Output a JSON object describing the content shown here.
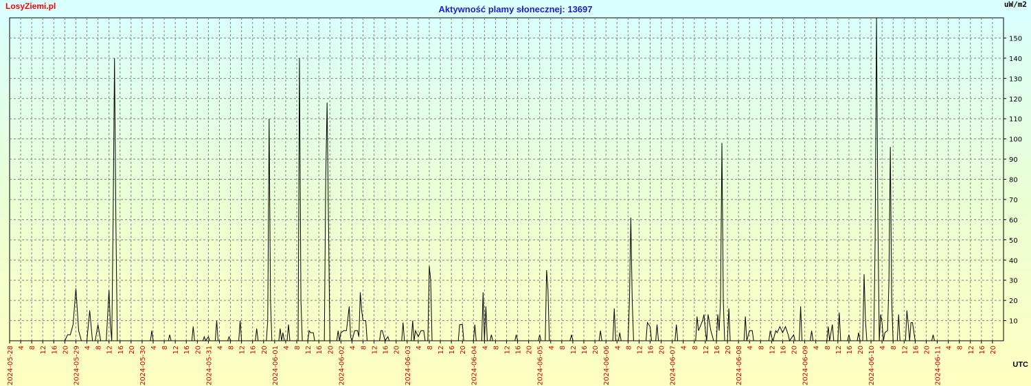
{
  "brand": "LosyZiemi.pl",
  "chart_data": {
    "type": "line",
    "title": "Aktywność plamy słonecznej: 13697",
    "ylabel": "uW/m2",
    "xlabel": "UTC",
    "ylim": [
      0,
      160
    ],
    "xlim_hours": [
      0,
      360
    ],
    "grid": true,
    "yticks": [
      10,
      20,
      30,
      40,
      50,
      60,
      70,
      80,
      90,
      100,
      110,
      120,
      130,
      140,
      150
    ],
    "xtick_labels": [
      "2024-05-28",
      "4",
      "8",
      "12",
      "16",
      "20",
      "2024-05-29",
      "4",
      "8",
      "12",
      "16",
      "20",
      "2024-05-30",
      "4",
      "8",
      "12",
      "16",
      "20",
      "2024-05-31",
      "4",
      "8",
      "12",
      "16",
      "20",
      "2024-06-01",
      "4",
      "8",
      "12",
      "16",
      "20",
      "2024-06-02",
      "4",
      "8",
      "12",
      "16",
      "20",
      "2024-06-03",
      "4",
      "8",
      "12",
      "16",
      "20",
      "2024-06-04",
      "4",
      "8",
      "12",
      "16",
      "20",
      "2024-06-05",
      "4",
      "8",
      "12",
      "16",
      "20",
      "2024-06-06",
      "4",
      "8",
      "12",
      "16",
      "20",
      "2024-06-07",
      "4",
      "8",
      "12",
      "16",
      "20",
      "2024-06-08",
      "4",
      "8",
      "12",
      "16",
      "20",
      "2024-06-09",
      "4",
      "8",
      "12",
      "16",
      "20",
      "2024-06-10",
      "4",
      "8",
      "12",
      "16",
      "20",
      "2024-06-11",
      "4",
      "8",
      "12",
      "16",
      "20"
    ],
    "series": [
      {
        "color": "#000000",
        "points": [
          [
            0,
            0
          ],
          [
            20,
            0
          ],
          [
            21,
            3
          ],
          [
            22,
            3
          ],
          [
            23,
            8
          ],
          [
            24,
            26
          ],
          [
            25,
            5
          ],
          [
            26,
            0
          ],
          [
            28,
            0
          ],
          [
            29,
            15
          ],
          [
            30,
            0
          ],
          [
            31,
            0
          ],
          [
            32,
            8
          ],
          [
            33,
            0
          ],
          [
            35,
            0
          ],
          [
            36,
            25
          ],
          [
            36.5,
            8
          ],
          [
            37,
            0
          ],
          [
            37.5,
            60
          ],
          [
            38,
            140
          ],
          [
            38.5,
            60
          ],
          [
            39,
            0
          ],
          [
            51,
            0
          ],
          [
            51.5,
            5
          ],
          [
            52,
            0
          ],
          [
            57.5,
            0
          ],
          [
            58,
            3
          ],
          [
            58.5,
            0
          ],
          [
            66,
            0
          ],
          [
            66.5,
            7
          ],
          [
            67,
            0
          ],
          [
            70,
            0
          ],
          [
            70.5,
            2
          ],
          [
            71,
            0
          ],
          [
            72,
            2
          ],
          [
            72.5,
            0
          ],
          [
            74.5,
            0
          ],
          [
            75,
            10
          ],
          [
            75.5,
            0
          ],
          [
            79,
            0
          ],
          [
            79.5,
            2
          ],
          [
            80,
            0
          ],
          [
            83,
            0
          ],
          [
            83.5,
            10
          ],
          [
            84,
            0
          ],
          [
            89,
            0
          ],
          [
            89.5,
            6
          ],
          [
            90,
            0
          ],
          [
            93,
            0
          ],
          [
            93.5,
            10
          ],
          [
            94,
            110
          ],
          [
            94.5,
            20
          ],
          [
            95,
            0
          ],
          [
            97.5,
            0
          ],
          [
            98,
            6
          ],
          [
            98.5,
            0
          ],
          [
            99,
            4
          ],
          [
            99.5,
            0
          ],
          [
            100.5,
            0
          ],
          [
            101,
            8
          ],
          [
            101.5,
            0
          ],
          [
            104.5,
            0
          ],
          [
            105,
            140
          ],
          [
            105.5,
            20
          ],
          [
            106,
            0
          ],
          [
            108,
            0
          ],
          [
            108.5,
            5
          ],
          [
            109,
            4
          ],
          [
            110,
            4
          ],
          [
            110.5,
            0
          ],
          [
            114,
            0
          ],
          [
            114.5,
            80
          ],
          [
            115,
            118
          ],
          [
            115.5,
            60
          ],
          [
            116,
            0
          ],
          [
            118.5,
            0
          ],
          [
            119,
            5
          ],
          [
            119.5,
            0
          ],
          [
            120,
            4
          ],
          [
            121,
            5
          ],
          [
            122,
            5
          ],
          [
            123,
            17
          ],
          [
            123.5,
            2
          ],
          [
            124,
            0
          ],
          [
            125,
            5
          ],
          [
            126,
            5
          ],
          [
            126.5,
            2
          ],
          [
            127,
            24
          ],
          [
            127.5,
            15
          ],
          [
            128,
            10
          ],
          [
            129,
            10
          ],
          [
            129.5,
            0
          ],
          [
            134,
            0
          ],
          [
            134.5,
            5
          ],
          [
            135,
            5
          ],
          [
            136,
            0
          ],
          [
            137,
            2
          ],
          [
            137.5,
            0
          ],
          [
            142,
            0
          ],
          [
            142.5,
            9
          ],
          [
            143,
            0
          ],
          [
            145.5,
            0
          ],
          [
            146,
            10
          ],
          [
            146.5,
            0
          ],
          [
            147,
            5
          ],
          [
            148,
            2
          ],
          [
            149,
            5
          ],
          [
            150,
            5
          ],
          [
            150.5,
            0
          ],
          [
            151.5,
            0
          ],
          [
            152,
            37
          ],
          [
            152.5,
            30
          ],
          [
            153,
            0
          ],
          [
            162.5,
            0
          ],
          [
            163,
            8
          ],
          [
            164,
            8
          ],
          [
            164.5,
            0
          ],
          [
            168,
            0
          ],
          [
            168.5,
            8
          ],
          [
            169,
            0
          ],
          [
            171,
            0
          ],
          [
            171.5,
            24
          ],
          [
            172,
            0
          ],
          [
            172.5,
            17
          ],
          [
            173,
            0
          ],
          [
            174,
            0
          ],
          [
            174.5,
            3
          ],
          [
            175,
            0
          ],
          [
            183,
            0
          ],
          [
            183.5,
            3
          ],
          [
            184,
            0
          ],
          [
            191.5,
            0
          ],
          [
            192,
            3
          ],
          [
            192.5,
            0
          ],
          [
            194,
            0
          ],
          [
            194.5,
            35
          ],
          [
            195,
            25
          ],
          [
            195.5,
            0
          ],
          [
            203,
            0
          ],
          [
            203.5,
            3
          ],
          [
            204,
            0
          ],
          [
            213.5,
            0
          ],
          [
            214,
            5
          ],
          [
            214.5,
            0
          ],
          [
            218.5,
            0
          ],
          [
            219,
            16
          ],
          [
            219.5,
            0
          ],
          [
            220.5,
            0
          ],
          [
            221,
            4
          ],
          [
            221.5,
            0
          ],
          [
            224,
            0
          ],
          [
            224.5,
            20
          ],
          [
            225,
            61
          ],
          [
            225.5,
            20
          ],
          [
            226,
            0
          ],
          [
            230.5,
            0
          ],
          [
            231,
            9
          ],
          [
            232,
            7
          ],
          [
            232.5,
            0
          ],
          [
            234,
            0
          ],
          [
            234.5,
            8
          ],
          [
            235,
            0
          ],
          [
            241,
            0
          ],
          [
            241.5,
            8
          ],
          [
            242,
            0
          ],
          [
            248.5,
            0
          ],
          [
            249,
            12
          ],
          [
            249.5,
            5
          ],
          [
            251,
            10
          ],
          [
            251.5,
            13
          ],
          [
            252,
            5
          ],
          [
            252.5,
            0
          ],
          [
            253,
            13
          ],
          [
            254,
            5
          ],
          [
            255,
            0
          ],
          [
            256,
            0
          ],
          [
            256.5,
            13
          ],
          [
            257,
            5
          ],
          [
            257.5,
            20
          ],
          [
            258,
            98
          ],
          [
            258.5,
            20
          ],
          [
            259,
            0
          ],
          [
            260,
            0
          ],
          [
            260.5,
            16
          ],
          [
            261,
            0
          ],
          [
            266,
            0
          ],
          [
            266.5,
            12
          ],
          [
            267,
            0
          ],
          [
            268,
            5
          ],
          [
            269,
            5
          ],
          [
            269.5,
            0
          ],
          [
            275,
            0
          ],
          [
            275.5,
            5
          ],
          [
            276,
            2
          ],
          [
            276.5,
            0
          ],
          [
            277.5,
            5
          ],
          [
            278,
            4
          ],
          [
            279,
            7
          ],
          [
            280,
            4
          ],
          [
            281,
            7
          ],
          [
            282,
            3
          ],
          [
            282.5,
            0
          ],
          [
            284,
            3
          ],
          [
            284.5,
            0
          ],
          [
            286,
            0
          ],
          [
            286.5,
            17
          ],
          [
            287,
            0
          ],
          [
            290,
            0
          ],
          [
            290.5,
            5
          ],
          [
            291,
            0
          ],
          [
            296,
            0
          ],
          [
            296.5,
            7
          ],
          [
            297,
            0
          ],
          [
            298,
            8
          ],
          [
            298.5,
            0
          ],
          [
            300,
            0
          ],
          [
            300.5,
            14
          ],
          [
            301,
            0
          ],
          [
            303.5,
            0
          ],
          [
            304,
            3
          ],
          [
            304.5,
            0
          ],
          [
            307,
            0
          ],
          [
            307.5,
            4
          ],
          [
            308,
            0
          ],
          [
            309,
            0
          ],
          [
            309.5,
            33
          ],
          [
            310,
            10
          ],
          [
            310.5,
            0
          ],
          [
            313,
            0
          ],
          [
            313.5,
            50
          ],
          [
            314,
            160
          ],
          [
            314.5,
            60
          ],
          [
            315,
            0
          ],
          [
            315.5,
            13
          ],
          [
            316,
            9
          ],
          [
            316.5,
            0
          ],
          [
            317,
            4
          ],
          [
            318,
            5
          ],
          [
            318.5,
            30
          ],
          [
            319,
            96
          ],
          [
            319.5,
            20
          ],
          [
            320,
            0
          ],
          [
            321.5,
            0
          ],
          [
            322,
            13
          ],
          [
            322.5,
            0
          ],
          [
            324.5,
            0
          ],
          [
            325,
            15
          ],
          [
            325.5,
            8
          ],
          [
            326,
            0
          ],
          [
            326.5,
            9
          ],
          [
            327,
            9
          ],
          [
            328,
            0
          ],
          [
            334,
            0
          ],
          [
            334.5,
            3
          ],
          [
            335,
            0
          ],
          [
            360,
            0
          ]
        ]
      }
    ]
  }
}
